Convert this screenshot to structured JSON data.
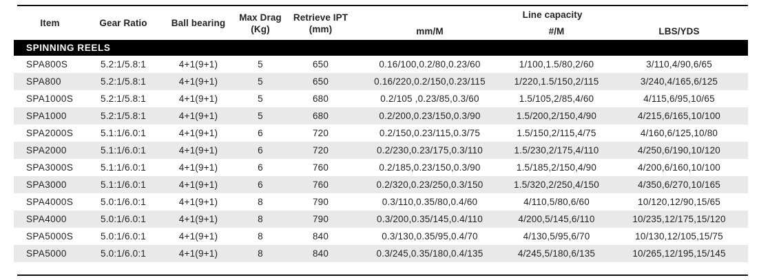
{
  "table": {
    "section_header": "SPINNING REELS",
    "line_capacity_group_label": "Line capacity",
    "headers": {
      "item": "Item",
      "gear_ratio": "Gear Ratio",
      "ball_bearing": "Ball bearing",
      "max_drag_line1": "Max Drag",
      "max_drag_line2": "(Kg)",
      "retrieve_ipt_line1": "Retrieve IPT",
      "retrieve_ipt_line2": "(mm)",
      "mm_m": "mm/M",
      "hash_m": "#/M",
      "lbs_yds": "LBS/YDS"
    },
    "column_keys": [
      "item",
      "gear_ratio",
      "ball_bearing",
      "max_drag",
      "retrieve_ipt",
      "mm_m",
      "hash_m",
      "lbs_yds"
    ],
    "rows": [
      {
        "item": "SPA800S",
        "gear_ratio": "5.2:1/5.8:1",
        "ball_bearing": "4+1(9+1)",
        "max_drag": "5",
        "retrieve_ipt": "650",
        "mm_m": "0.16/100,0.2/80,0.23/60",
        "hash_m": "1/100,1.5/80,2/60",
        "lbs_yds": "3/110,4/90,6/65"
      },
      {
        "item": "SPA800",
        "gear_ratio": "5.2:1/5.8:1",
        "ball_bearing": "4+1(9+1)",
        "max_drag": "5",
        "retrieve_ipt": "650",
        "mm_m": "0.16/220,0.2/150,0.23/115",
        "hash_m": "1/220,1.5/150,2/115",
        "lbs_yds": "3/240,4/165,6/125"
      },
      {
        "item": "SPA1000S",
        "gear_ratio": "5.2:1/5.8:1",
        "ball_bearing": "4+1(9+1)",
        "max_drag": "5",
        "retrieve_ipt": "680",
        "mm_m": "0.2/105 ,0.23/85,0.3/60",
        "hash_m": "1.5/105,2/85,4/60",
        "lbs_yds": "4/115,6/95,10/65"
      },
      {
        "item": "SPA1000",
        "gear_ratio": "5.2:1/5.8:1",
        "ball_bearing": "4+1(9+1)",
        "max_drag": "5",
        "retrieve_ipt": "680",
        "mm_m": "0.2/200,0.23/150,0.3/90",
        "hash_m": "1.5/200,2/150,4/90",
        "lbs_yds": "4/215,6/165,10/100"
      },
      {
        "item": "SPA2000S",
        "gear_ratio": "5.1:1/6.0:1",
        "ball_bearing": "4+1(9+1)",
        "max_drag": "6",
        "retrieve_ipt": "720",
        "mm_m": "0.2/150,0.23/115,0.3/75",
        "hash_m": "1.5/150,2/115,4/75",
        "lbs_yds": "4/160,6/125,10/80"
      },
      {
        "item": "SPA2000",
        "gear_ratio": "5.1:1/6.0:1",
        "ball_bearing": "4+1(9+1)",
        "max_drag": "6",
        "retrieve_ipt": "720",
        "mm_m": "0.2/230,0.23/175,0.3/110",
        "hash_m": "1.5/230,2/175,4/110",
        "lbs_yds": "4/250,6/190,10/120"
      },
      {
        "item": "SPA3000S",
        "gear_ratio": "5.1:1/6.0:1",
        "ball_bearing": "4+1(9+1)",
        "max_drag": "6",
        "retrieve_ipt": "760",
        "mm_m": "0.2/185,0.23/150,0.3/90",
        "hash_m": "1.5/185,2/150,4/90",
        "lbs_yds": "4/200,6/160,10/100"
      },
      {
        "item": "SPA3000",
        "gear_ratio": "5.1:1/6.0:1",
        "ball_bearing": "4+1(9+1)",
        "max_drag": "6",
        "retrieve_ipt": "760",
        "mm_m": "0.2/320,0.23/250,0.3/150",
        "hash_m": "1.5/320,2/250,4/150",
        "lbs_yds": "4/350,6/270,10/165"
      },
      {
        "item": "SPA4000S",
        "gear_ratio": "5.0:1/6.0:1",
        "ball_bearing": "4+1(9+1)",
        "max_drag": "8",
        "retrieve_ipt": "790",
        "mm_m": "0.3/110,0.35/80,0.4/60",
        "hash_m": "4/110,5/80,6/60",
        "lbs_yds": "10/120,12/90,15/65"
      },
      {
        "item": "SPA4000",
        "gear_ratio": "5.0:1/6.0:1",
        "ball_bearing": "4+1(9+1)",
        "max_drag": "8",
        "retrieve_ipt": "790",
        "mm_m": "0.3/200,0.35/145,0.4/110",
        "hash_m": "4/200,5/145,6/110",
        "lbs_yds": "10/235,12/175,15/120"
      },
      {
        "item": "SPA5000S",
        "gear_ratio": "5.0:1/6.0:1",
        "ball_bearing": "4+1(9+1)",
        "max_drag": "8",
        "retrieve_ipt": "840",
        "mm_m": "0.3/130,0.35/95,0.4/70",
        "hash_m": "4/130,5/95,6/70",
        "lbs_yds": "10/130,12/105,15/75"
      },
      {
        "item": "SPA5000",
        "gear_ratio": "5.0:1/6.0:1",
        "ball_bearing": "4+1(9+1)",
        "max_drag": "8",
        "retrieve_ipt": "840",
        "mm_m": "0.3/245,0.35/180,0.4/135",
        "hash_m": "4/245,5/180,6/135",
        "lbs_yds": "10/265,12/195,15/145"
      }
    ]
  },
  "colors": {
    "section_bg": "#000000",
    "section_text": "#ffffff",
    "row_stripe": "#e9e9e9",
    "rule": "#111111",
    "body_text": "#1f1f1f"
  }
}
